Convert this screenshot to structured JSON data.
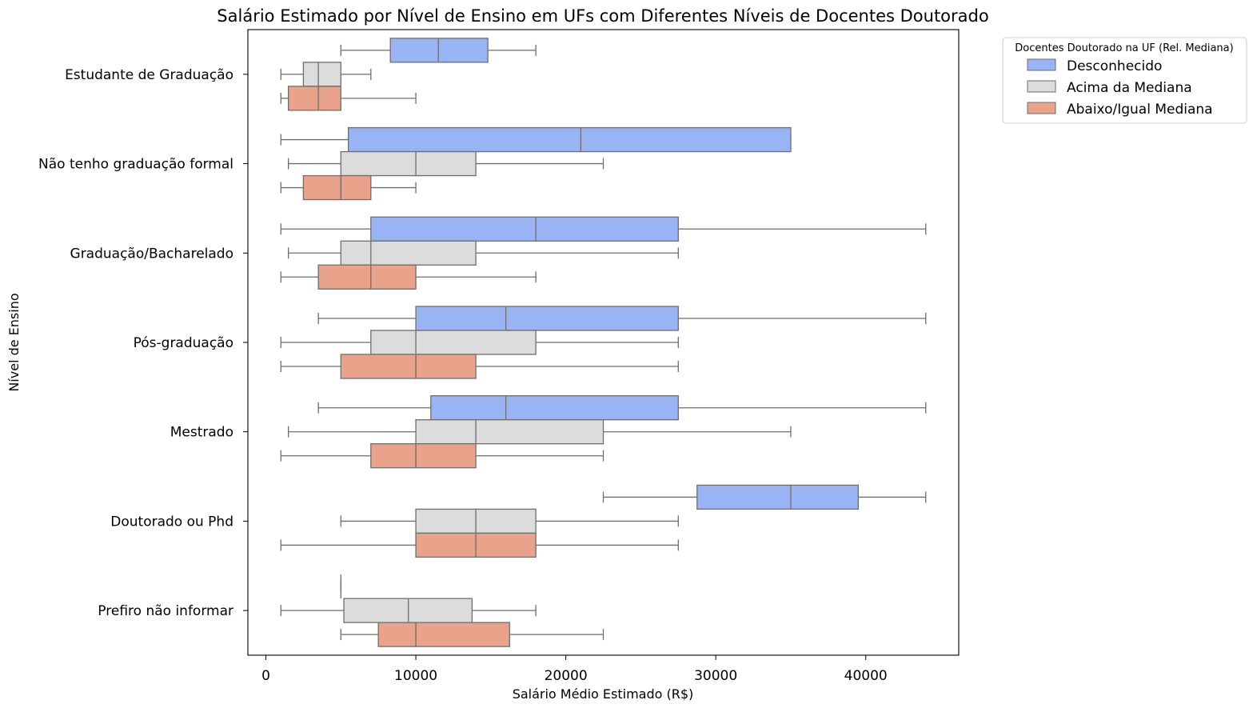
{
  "chart_data": {
    "type": "boxplot",
    "orientation": "horizontal",
    "title": "Salário Estimado por Nível de Ensino em UFs com Diferentes Níveis de Docentes Doutorado",
    "xlabel": "Salário Médio Estimado (R$)",
    "ylabel": "Nível de Ensino",
    "xlim": [
      -1200,
      46200
    ],
    "xticks": [
      0,
      10000,
      20000,
      30000,
      40000
    ],
    "xtick_labels": [
      "0",
      "10000",
      "20000",
      "30000",
      "40000"
    ],
    "grid": false,
    "categories": [
      "Estudante de Graduação",
      "Não tenho graduação formal",
      "Graduação/Bacharelado",
      "Pós-graduação",
      "Mestrado",
      "Doutorado ou Phd",
      "Prefiro não informar"
    ],
    "legend": {
      "title": "Docentes Doutorado na UF (Rel. Mediana)",
      "placement": "outside-top-right",
      "entries": [
        {
          "label": "Desconhecido",
          "color": "#98b4f4"
        },
        {
          "label": "Acima da Mediana",
          "color": "#dcdcdc"
        },
        {
          "label": "Abaixo/Igual Mediana",
          "color": "#e8a38a"
        }
      ]
    },
    "series": [
      {
        "name": "Desconhecido",
        "color": "#98b4f4",
        "boxes": [
          {
            "whislo": 5000,
            "q1": 8300,
            "med": 11500,
            "q3": 14800,
            "whishi": 18000
          },
          {
            "whislo": 1000,
            "q1": 5500,
            "med": 21000,
            "q3": 35000,
            "whishi": 35000
          },
          {
            "whislo": 1000,
            "q1": 7000,
            "med": 18000,
            "q3": 27500,
            "whishi": 44000
          },
          {
            "whislo": 3500,
            "q1": 10000,
            "med": 16000,
            "q3": 27500,
            "whishi": 44000
          },
          {
            "whislo": 3500,
            "q1": 11000,
            "med": 16000,
            "q3": 27500,
            "whishi": 44000
          },
          {
            "whislo": 22500,
            "q1": 28750,
            "med": 35000,
            "q3": 39500,
            "whishi": 44000
          },
          {
            "whislo": 5000,
            "q1": 5000,
            "med": 5000,
            "q3": 5000,
            "whishi": 5000
          }
        ]
      },
      {
        "name": "Acima da Mediana",
        "color": "#dcdcdc",
        "boxes": [
          {
            "whislo": 1000,
            "q1": 2500,
            "med": 3500,
            "q3": 5000,
            "whishi": 7000
          },
          {
            "whislo": 1500,
            "q1": 5000,
            "med": 10000,
            "q3": 14000,
            "whishi": 22500
          },
          {
            "whislo": 1500,
            "q1": 5000,
            "med": 7000,
            "q3": 14000,
            "whishi": 27500
          },
          {
            "whislo": 1000,
            "q1": 7000,
            "med": 10000,
            "q3": 18000,
            "whishi": 27500
          },
          {
            "whislo": 1500,
            "q1": 10000,
            "med": 14000,
            "q3": 22500,
            "whishi": 35000
          },
          {
            "whislo": 5000,
            "q1": 10000,
            "med": 14000,
            "q3": 18000,
            "whishi": 27500
          },
          {
            "whislo": 1000,
            "q1": 5200,
            "med": 9500,
            "q3": 13750,
            "whishi": 18000
          }
        ]
      },
      {
        "name": "Abaixo/Igual Mediana",
        "color": "#e8a38a",
        "boxes": [
          {
            "whislo": 1000,
            "q1": 1500,
            "med": 3500,
            "q3": 5000,
            "whishi": 10000
          },
          {
            "whislo": 1000,
            "q1": 2500,
            "med": 5000,
            "q3": 7000,
            "whishi": 10000
          },
          {
            "whislo": 1000,
            "q1": 3500,
            "med": 7000,
            "q3": 10000,
            "whishi": 18000
          },
          {
            "whislo": 1000,
            "q1": 5000,
            "med": 10000,
            "q3": 14000,
            "whishi": 27500
          },
          {
            "whislo": 1000,
            "q1": 7000,
            "med": 10000,
            "q3": 14000,
            "whishi": 22500
          },
          {
            "whislo": 1000,
            "q1": 10000,
            "med": 14000,
            "q3": 18000,
            "whishi": 27500
          },
          {
            "whislo": 5000,
            "q1": 7500,
            "med": 10000,
            "q3": 16250,
            "whishi": 22500
          }
        ]
      }
    ]
  }
}
